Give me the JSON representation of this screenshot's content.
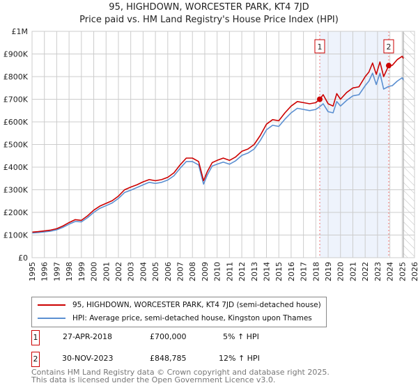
{
  "title": "95, HIGHDOWN, WORCESTER PARK, KT4 7JD",
  "subtitle": "Price paid vs. HM Land Registry's House Price Index (HPI)",
  "colors": {
    "property": "#cc0000",
    "hpi": "#5b8fd1",
    "shade": "#eef3fc"
  },
  "chart_data": {
    "type": "line",
    "title": "95, HIGHDOWN, WORCESTER PARK, KT4 7JD",
    "xlabel": "",
    "ylabel": "",
    "xlim": [
      1995,
      2026
    ],
    "ylim": [
      0,
      1000000
    ],
    "grid": true,
    "x_ticks": [
      "1995",
      "1996",
      "1997",
      "1998",
      "1999",
      "2000",
      "2001",
      "2002",
      "2003",
      "2004",
      "2005",
      "2006",
      "2007",
      "2008",
      "2009",
      "2010",
      "2011",
      "2012",
      "2013",
      "2014",
      "2015",
      "2016",
      "2017",
      "2018",
      "2019",
      "2020",
      "2021",
      "2022",
      "2023",
      "2024",
      "2025",
      "2026"
    ],
    "y_ticks": [
      {
        "v": 0,
        "label": "£0"
      },
      {
        "v": 100000,
        "label": "£100K"
      },
      {
        "v": 200000,
        "label": "£200K"
      },
      {
        "v": 300000,
        "label": "£300K"
      },
      {
        "v": 400000,
        "label": "£400K"
      },
      {
        "v": 500000,
        "label": "£500K"
      },
      {
        "v": 600000,
        "label": "£600K"
      },
      {
        "v": 700000,
        "label": "£700K"
      },
      {
        "v": 800000,
        "label": "£800K"
      },
      {
        "v": 900000,
        "label": "£900K"
      },
      {
        "v": 1000000,
        "label": "£1M"
      }
    ],
    "series": [
      {
        "name": "95, HIGHDOWN, WORCESTER PARK, KT4 7JD (semi-detached house)",
        "x": [
          1995,
          1995.5,
          1996,
          1996.5,
          1997,
          1997.5,
          1998,
          1998.5,
          1999,
          1999.5,
          2000,
          2000.5,
          2001,
          2001.5,
          2002,
          2002.5,
          2003,
          2003.5,
          2004,
          2004.5,
          2005,
          2005.5,
          2006,
          2006.5,
          2007,
          2007.5,
          2008,
          2008.5,
          2008.9,
          2009.2,
          2009.6,
          2010,
          2010.5,
          2011,
          2011.5,
          2012,
          2012.5,
          2013,
          2013.5,
          2014,
          2014.5,
          2015,
          2015.5,
          2016,
          2016.5,
          2017,
          2017.5,
          2018,
          2018.32,
          2018.6,
          2019,
          2019.4,
          2019.7,
          2020,
          2020.5,
          2021,
          2021.5,
          2022,
          2022.3,
          2022.6,
          2022.9,
          2023.2,
          2023.5,
          2023.91,
          2024.2,
          2024.6,
          2025,
          2025.1
        ],
        "values": [
          113000,
          115000,
          118000,
          122000,
          128000,
          140000,
          155000,
          168000,
          165000,
          185000,
          210000,
          228000,
          240000,
          252000,
          272000,
          300000,
          312000,
          322000,
          335000,
          345000,
          340000,
          345000,
          355000,
          375000,
          410000,
          440000,
          440000,
          425000,
          340000,
          380000,
          420000,
          430000,
          440000,
          430000,
          445000,
          470000,
          480000,
          500000,
          540000,
          590000,
          610000,
          605000,
          640000,
          670000,
          690000,
          685000,
          680000,
          685000,
          700000,
          720000,
          680000,
          670000,
          725000,
          700000,
          730000,
          750000,
          755000,
          800000,
          820000,
          860000,
          810000,
          865000,
          800000,
          848785,
          850000,
          875000,
          890000,
          880000
        ]
      },
      {
        "name": "HPI: Average price, semi-detached house, Kingston upon Thames",
        "x": [
          1995,
          1995.5,
          1996,
          1996.5,
          1997,
          1997.5,
          1998,
          1998.5,
          1999,
          1999.5,
          2000,
          2000.5,
          2001,
          2001.5,
          2002,
          2002.5,
          2003,
          2003.5,
          2004,
          2004.5,
          2005,
          2005.5,
          2006,
          2006.5,
          2007,
          2007.5,
          2008,
          2008.5,
          2008.9,
          2009.2,
          2009.6,
          2010,
          2010.5,
          2011,
          2011.5,
          2012,
          2012.5,
          2013,
          2013.5,
          2014,
          2014.5,
          2015,
          2015.5,
          2016,
          2016.5,
          2017,
          2017.5,
          2018,
          2018.32,
          2018.6,
          2019,
          2019.4,
          2019.7,
          2020,
          2020.5,
          2021,
          2021.5,
          2022,
          2022.3,
          2022.6,
          2022.9,
          2023.2,
          2023.5,
          2023.91,
          2024.2,
          2024.6,
          2025,
          2025.1
        ],
        "values": [
          109000,
          111000,
          114000,
          117000,
          123000,
          134000,
          148000,
          160000,
          158000,
          177000,
          200000,
          218000,
          230000,
          242000,
          262000,
          288000,
          298000,
          310000,
          322000,
          333000,
          328000,
          333000,
          343000,
          362000,
          395000,
          425000,
          425000,
          410000,
          325000,
          365000,
          405000,
          413000,
          422000,
          413000,
          428000,
          452000,
          462000,
          480000,
          518000,
          565000,
          585000,
          580000,
          612000,
          640000,
          660000,
          655000,
          650000,
          655000,
          667000,
          680000,
          645000,
          640000,
          690000,
          670000,
          695000,
          715000,
          720000,
          760000,
          780000,
          815000,
          765000,
          815000,
          745000,
          757000,
          760000,
          780000,
          795000,
          785000
        ]
      }
    ],
    "annotations": [
      {
        "label": "1",
        "x": 2018.32,
        "value": 700000
      },
      {
        "label": "2",
        "x": 2023.91,
        "value": 848785
      }
    ],
    "shaded_range": [
      2018.32,
      2023.91
    ],
    "forecast_hatch_from": 2025.1
  },
  "legend": {
    "property_label": "95, HIGHDOWN, WORCESTER PARK, KT4 7JD (semi-detached house)",
    "hpi_label": "HPI: Average price, semi-detached house, Kingston upon Thames"
  },
  "transactions": [
    {
      "num": "1",
      "date": "27-APR-2018",
      "price": "£700,000",
      "hpi": "5% ↑ HPI"
    },
    {
      "num": "2",
      "date": "30-NOV-2023",
      "price": "£848,785",
      "hpi": "12% ↑ HPI"
    }
  ],
  "footer": {
    "line1": "Contains HM Land Registry data © Crown copyright and database right 2025.",
    "line2": "This data is licensed under the Open Government Licence v3.0."
  }
}
